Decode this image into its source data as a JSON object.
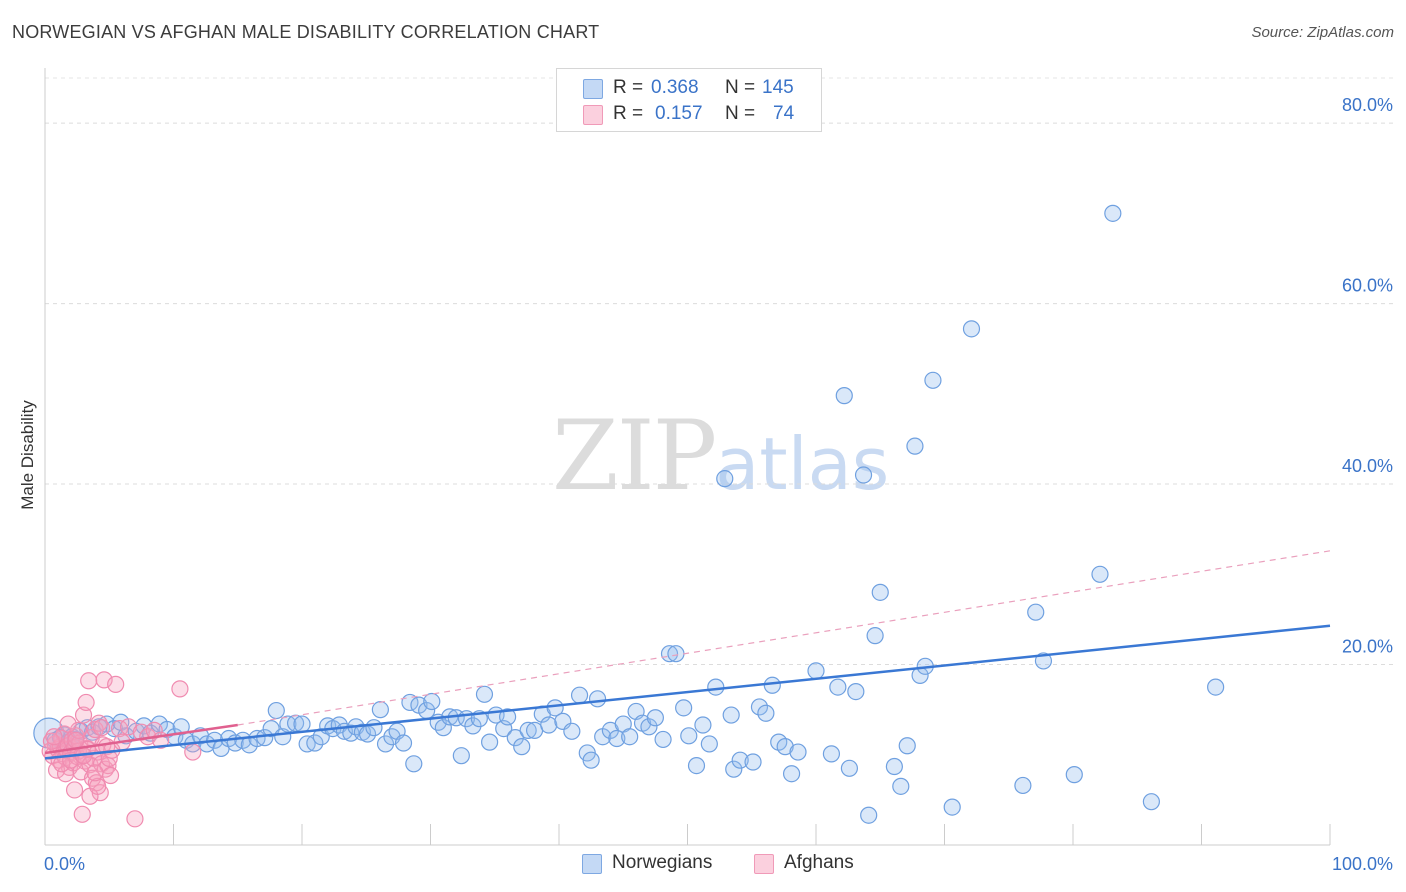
{
  "header": {
    "title": "NORWEGIAN VS AFGHAN MALE DISABILITY CORRELATION CHART",
    "source": "Source: ZipAtlas.com"
  },
  "watermark": {
    "zip": "ZIP",
    "atlas": "atlas"
  },
  "legend": {
    "rows": [
      {
        "r_label": "R =",
        "r_value": "0.368",
        "n_label": "N =",
        "n_value": "145",
        "color": "#a9c8f2"
      },
      {
        "r_label": "R =",
        "r_value": "0.157",
        "n_label": "N =",
        "n_value": "74",
        "color": "#f7b6cb"
      }
    ]
  },
  "chart_data": {
    "type": "scatter",
    "title": "NORWEGIAN VS AFGHAN MALE DISABILITY CORRELATION CHART",
    "xlabel": "",
    "ylabel": "Male Disability",
    "xlim": [
      0,
      100
    ],
    "ylim": [
      0,
      85
    ],
    "x_tick_labels": [
      "0.0%",
      "100.0%"
    ],
    "y_ticks": [
      20,
      40,
      60,
      80
    ],
    "y_tick_labels": [
      "20.0%",
      "40.0%",
      "60.0%",
      "80.0%"
    ],
    "grid": true,
    "legend_position": "bottom-center",
    "series": [
      {
        "name": "Norwegians",
        "color": "#6fa0e0",
        "trend": {
          "x": [
            0,
            100
          ],
          "y": [
            9.6,
            24.3
          ],
          "style": "solid"
        },
        "points": [
          [
            0.3,
            12.4
          ],
          [
            0.8,
            11.6
          ],
          [
            1.2,
            11.9
          ],
          [
            1.5,
            12.2
          ],
          [
            1.8,
            11.4
          ],
          [
            2.1,
            12.0
          ],
          [
            2.4,
            11.7
          ],
          [
            2.8,
            12.6
          ],
          [
            3.3,
            13.0
          ],
          [
            3.7,
            12.5
          ],
          [
            4.2,
            13.1
          ],
          [
            4.8,
            13.4
          ],
          [
            5.4,
            12.9
          ],
          [
            5.9,
            13.6
          ],
          [
            6.3,
            12.1
          ],
          [
            7.1,
            12.6
          ],
          [
            7.7,
            13.2
          ],
          [
            8.2,
            12.4
          ],
          [
            8.9,
            13.4
          ],
          [
            9.5,
            12.8
          ],
          [
            10.1,
            12.0
          ],
          [
            10.6,
            13.1
          ],
          [
            11.0,
            11.6
          ],
          [
            11.5,
            11.2
          ],
          [
            12.1,
            12.1
          ],
          [
            12.6,
            11.2
          ],
          [
            13.2,
            11.6
          ],
          [
            13.7,
            10.7
          ],
          [
            14.3,
            11.8
          ],
          [
            14.8,
            11.3
          ],
          [
            15.4,
            11.6
          ],
          [
            15.9,
            11.1
          ],
          [
            16.5,
            11.8
          ],
          [
            17.1,
            11.9
          ],
          [
            17.6,
            12.9
          ],
          [
            18.0,
            14.9
          ],
          [
            18.5,
            12.0
          ],
          [
            18.9,
            13.4
          ],
          [
            19.5,
            13.5
          ],
          [
            20.0,
            13.4
          ],
          [
            20.4,
            11.2
          ],
          [
            21.0,
            11.3
          ],
          [
            21.5,
            12.0
          ],
          [
            22.0,
            13.2
          ],
          [
            22.4,
            12.9
          ],
          [
            22.9,
            13.3
          ],
          [
            23.3,
            12.6
          ],
          [
            23.8,
            12.4
          ],
          [
            24.2,
            13.1
          ],
          [
            24.7,
            12.5
          ],
          [
            25.1,
            12.3
          ],
          [
            25.6,
            13.0
          ],
          [
            26.1,
            15.0
          ],
          [
            26.5,
            11.2
          ],
          [
            27.0,
            12.0
          ],
          [
            27.4,
            12.6
          ],
          [
            27.9,
            11.3
          ],
          [
            28.4,
            15.8
          ],
          [
            28.7,
            9.0
          ],
          [
            29.1,
            15.5
          ],
          [
            29.7,
            14.9
          ],
          [
            30.1,
            15.9
          ],
          [
            30.6,
            13.6
          ],
          [
            31.0,
            13.0
          ],
          [
            31.5,
            14.2
          ],
          [
            32.0,
            14.1
          ],
          [
            32.4,
            9.9
          ],
          [
            32.8,
            14.0
          ],
          [
            33.3,
            13.2
          ],
          [
            33.8,
            14.0
          ],
          [
            34.2,
            16.7
          ],
          [
            34.6,
            11.4
          ],
          [
            35.1,
            14.4
          ],
          [
            35.7,
            12.9
          ],
          [
            36.0,
            14.2
          ],
          [
            36.6,
            11.9
          ],
          [
            37.1,
            10.9
          ],
          [
            37.6,
            12.7
          ],
          [
            38.1,
            12.7
          ],
          [
            38.7,
            14.5
          ],
          [
            39.2,
            13.3
          ],
          [
            39.7,
            15.2
          ],
          [
            40.3,
            13.7
          ],
          [
            41.0,
            12.6
          ],
          [
            41.6,
            16.6
          ],
          [
            42.2,
            10.2
          ],
          [
            42.5,
            9.4
          ],
          [
            43.0,
            16.2
          ],
          [
            43.4,
            12.0
          ],
          [
            44.0,
            12.7
          ],
          [
            44.5,
            11.8
          ],
          [
            45.0,
            13.4
          ],
          [
            45.5,
            12.0
          ],
          [
            46.0,
            14.8
          ],
          [
            46.5,
            13.5
          ],
          [
            47.0,
            13.1
          ],
          [
            47.5,
            14.1
          ],
          [
            48.1,
            11.7
          ],
          [
            48.6,
            21.2
          ],
          [
            49.1,
            21.2
          ],
          [
            49.7,
            15.2
          ],
          [
            50.1,
            12.1
          ],
          [
            50.7,
            8.8
          ],
          [
            51.2,
            13.3
          ],
          [
            51.7,
            11.2
          ],
          [
            52.2,
            17.5
          ],
          [
            52.9,
            40.6
          ],
          [
            53.4,
            14.4
          ],
          [
            53.6,
            8.4
          ],
          [
            54.1,
            9.4
          ],
          [
            55.1,
            9.2
          ],
          [
            55.6,
            15.3
          ],
          [
            56.1,
            14.6
          ],
          [
            56.6,
            17.7
          ],
          [
            57.1,
            11.4
          ],
          [
            57.6,
            10.9
          ],
          [
            58.1,
            7.9
          ],
          [
            58.6,
            10.3
          ],
          [
            60.0,
            19.3
          ],
          [
            61.2,
            10.1
          ],
          [
            61.7,
            17.5
          ],
          [
            62.2,
            49.8
          ],
          [
            62.6,
            8.5
          ],
          [
            63.1,
            17.0
          ],
          [
            63.7,
            41.0
          ],
          [
            64.1,
            3.3
          ],
          [
            64.6,
            23.2
          ],
          [
            65.0,
            28.0
          ],
          [
            66.1,
            8.7
          ],
          [
            66.6,
            6.5
          ],
          [
            67.1,
            11.0
          ],
          [
            67.7,
            44.2
          ],
          [
            68.1,
            18.8
          ],
          [
            68.5,
            19.8
          ],
          [
            69.1,
            51.5
          ],
          [
            70.6,
            4.2
          ],
          [
            72.1,
            57.2
          ],
          [
            76.1,
            6.6
          ],
          [
            77.1,
            25.8
          ],
          [
            77.7,
            20.4
          ],
          [
            80.1,
            7.8
          ],
          [
            82.1,
            30.0
          ],
          [
            83.1,
            70.0
          ],
          [
            86.1,
            4.8
          ],
          [
            91.1,
            17.5
          ]
        ]
      },
      {
        "name": "Afghans",
        "color": "#f08bb0",
        "trend": {
          "x": [
            0,
            15
          ],
          "y": [
            10.2,
            13.3
          ],
          "style": "solid",
          "extended": {
            "x": [
              15,
              100
            ],
            "y": [
              13.3,
              32.6
            ],
            "style": "dashed"
          }
        },
        "points": [
          [
            0.4,
            10.4
          ],
          [
            0.6,
            9.9
          ],
          [
            0.8,
            11.2
          ],
          [
            1.0,
            10.6
          ],
          [
            1.1,
            9.4
          ],
          [
            1.2,
            10.9
          ],
          [
            1.3,
            11.8
          ],
          [
            1.4,
            10.1
          ],
          [
            1.5,
            12.3
          ],
          [
            1.6,
            9.7
          ],
          [
            1.7,
            10.5
          ],
          [
            1.8,
            11.0
          ],
          [
            1.9,
            8.6
          ],
          [
            2.0,
            10.2
          ],
          [
            2.1,
            11.6
          ],
          [
            2.2,
            9.1
          ],
          [
            2.3,
            10.8
          ],
          [
            2.4,
            12.1
          ],
          [
            2.5,
            9.8
          ],
          [
            2.6,
            10.4
          ],
          [
            2.7,
            11.3
          ],
          [
            2.8,
            8.1
          ],
          [
            2.9,
            10.0
          ],
          [
            3.0,
            14.4
          ],
          [
            3.1,
            9.3
          ],
          [
            3.2,
            15.8
          ],
          [
            3.3,
            10.7
          ],
          [
            3.4,
            18.2
          ],
          [
            3.5,
            8.9
          ],
          [
            3.6,
            11.9
          ],
          [
            3.7,
            7.4
          ],
          [
            3.8,
            9.6
          ],
          [
            3.9,
            12.8
          ],
          [
            4.0,
            6.9
          ],
          [
            4.1,
            10.3
          ],
          [
            4.2,
            13.5
          ],
          [
            4.3,
            5.8
          ],
          [
            4.4,
            9.0
          ],
          [
            4.5,
            11.1
          ],
          [
            4.6,
            18.3
          ],
          [
            4.7,
            8.4
          ],
          [
            4.8,
            10.9
          ],
          [
            4.9,
            8.8
          ],
          [
            5.0,
            9.6
          ],
          [
            5.1,
            7.7
          ],
          [
            5.2,
            10.5
          ],
          [
            5.5,
            17.8
          ],
          [
            5.8,
            12.9
          ],
          [
            6.0,
            11.4
          ],
          [
            6.5,
            13.1
          ],
          [
            7.0,
            2.9
          ],
          [
            7.5,
            12.5
          ],
          [
            8.0,
            12.0
          ],
          [
            8.5,
            12.7
          ],
          [
            9.0,
            11.6
          ],
          [
            10.5,
            17.3
          ],
          [
            11.5,
            10.3
          ],
          [
            0.9,
            8.3
          ],
          [
            1.6,
            7.9
          ],
          [
            2.3,
            6.1
          ],
          [
            2.9,
            3.4
          ],
          [
            3.5,
            5.4
          ],
          [
            4.1,
            6.5
          ],
          [
            0.5,
            11.5
          ],
          [
            1.3,
            9.0
          ],
          [
            2.0,
            9.4
          ],
          [
            2.6,
            12.7
          ],
          [
            3.3,
            10.6
          ],
          [
            3.9,
            8.0
          ],
          [
            4.4,
            13.0
          ],
          [
            0.7,
            12.0
          ],
          [
            1.8,
            13.4
          ],
          [
            2.4,
            11.6
          ],
          [
            3.0,
            9.9
          ]
        ]
      }
    ]
  }
}
